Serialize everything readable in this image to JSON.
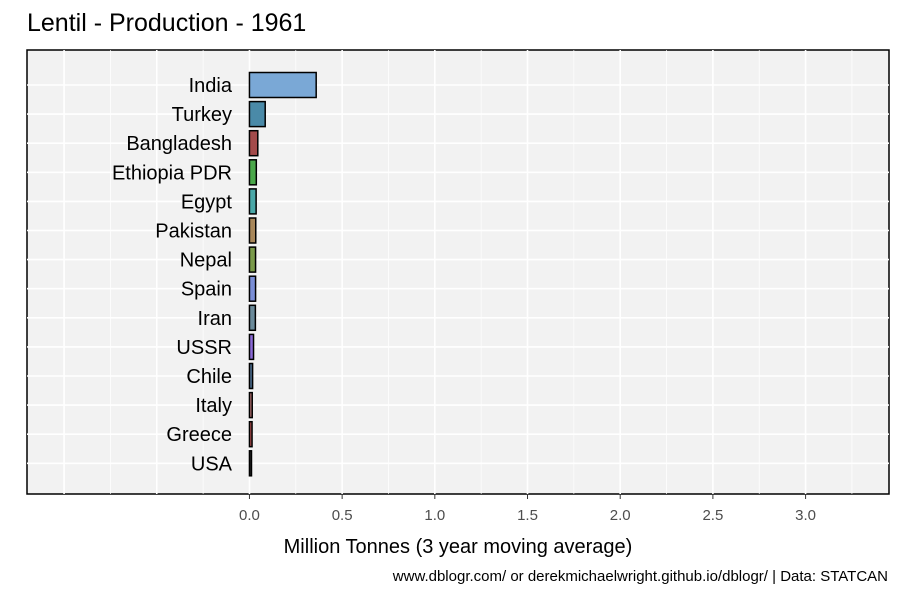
{
  "chart_data": {
    "type": "bar",
    "orientation": "horizontal",
    "title": "Lentil - Production - 1961",
    "xlabel": "Million Tonnes (3 year moving average)",
    "ylabel": "",
    "xlim": [
      -1.2,
      3.45
    ],
    "xticks": [
      "0.0",
      "0.5",
      "1.0",
      "1.5",
      "2.0",
      "2.5",
      "3.0"
    ],
    "grid": true,
    "legend": "none",
    "categories": [
      "India",
      "Turkey",
      "Bangladesh",
      "Ethiopia PDR",
      "Egypt",
      "Pakistan",
      "Nepal",
      "Spain",
      "Iran",
      "USSR",
      "Chile",
      "Italy",
      "Greece",
      "USA"
    ],
    "values": [
      0.36,
      0.085,
      0.045,
      0.037,
      0.036,
      0.034,
      0.033,
      0.033,
      0.032,
      0.022,
      0.017,
      0.015,
      0.014,
      0.011
    ],
    "colors": [
      "#7aa8d6",
      "#4a8aa8",
      "#a34a4a",
      "#4aa84a",
      "#4aa8a8",
      "#a8875a",
      "#7a9a4a",
      "#7a8ed6",
      "#6a8a9a",
      "#8a6ad6",
      "#4a6a8a",
      "#a86a6a",
      "#a84a4a",
      "#2a2a2a"
    ],
    "caption": "www.dblogr.com/ or derekmichaelwright.github.io/dblogr/ | Data: STATCAN"
  }
}
